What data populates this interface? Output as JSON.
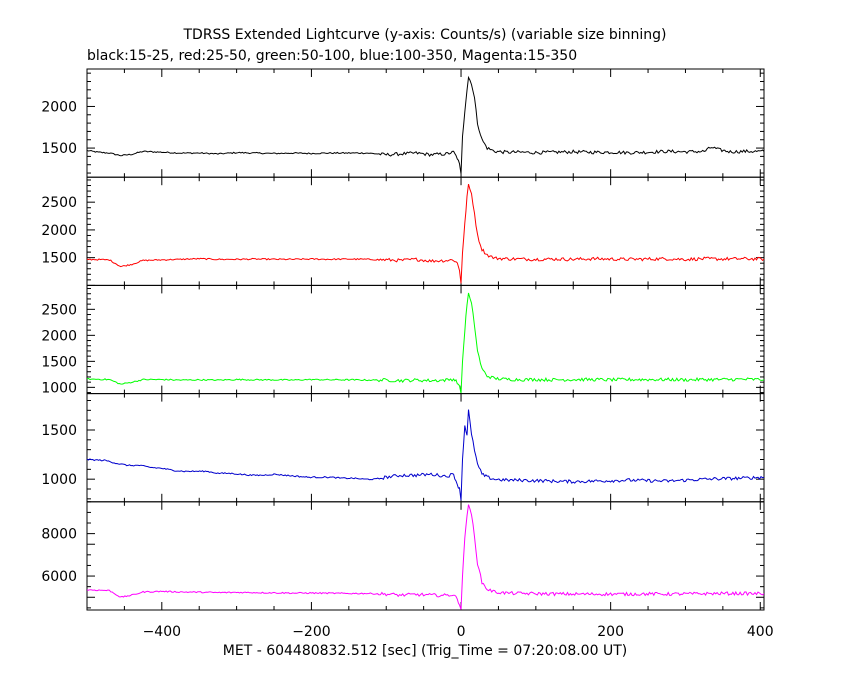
{
  "title": "TDRSS Extended Lightcurve (y-axis: Counts/s) (variable size binning)",
  "subtitle": "black:15-25, red:25-50, green:50-100, blue:100-350, Magenta:15-350",
  "xlabel": "MET - 604480832.512 [sec] (Trig_Time = 07:20:08.00 UT)",
  "chart_data": {
    "type": "line",
    "x_range": [
      -500,
      405
    ],
    "x_ticks": [
      -400,
      -200,
      0,
      200,
      400
    ],
    "grid": false,
    "panels": [
      {
        "band": "15-25",
        "color": "#000000",
        "ylim": [
          1150,
          2450
        ],
        "y_ticks": [
          1500,
          2000
        ],
        "points": [
          [
            -500,
            1470
          ],
          [
            -485,
            1450
          ],
          [
            -470,
            1440
          ],
          [
            -455,
            1410
          ],
          [
            -440,
            1425
          ],
          [
            -425,
            1460
          ],
          [
            -400,
            1450
          ],
          [
            -375,
            1440
          ],
          [
            -350,
            1440
          ],
          [
            -325,
            1430
          ],
          [
            -300,
            1445
          ],
          [
            -275,
            1440
          ],
          [
            -250,
            1435
          ],
          [
            -225,
            1440
          ],
          [
            -200,
            1435
          ],
          [
            -175,
            1440
          ],
          [
            -150,
            1440
          ],
          [
            -125,
            1440
          ],
          [
            -100,
            1420
          ],
          [
            -80,
            1430
          ],
          [
            -60,
            1440
          ],
          [
            -40,
            1420
          ],
          [
            -20,
            1430
          ],
          [
            -10,
            1450
          ],
          [
            -5,
            1380
          ],
          [
            -2,
            1300
          ],
          [
            0,
            1180
          ],
          [
            2,
            1650
          ],
          [
            5,
            1950
          ],
          [
            8,
            2200
          ],
          [
            10,
            2350
          ],
          [
            14,
            2280
          ],
          [
            18,
            2100
          ],
          [
            22,
            1800
          ],
          [
            28,
            1600
          ],
          [
            35,
            1500
          ],
          [
            45,
            1460
          ],
          [
            60,
            1450
          ],
          [
            80,
            1450
          ],
          [
            100,
            1445
          ],
          [
            125,
            1450
          ],
          [
            150,
            1455
          ],
          [
            175,
            1450
          ],
          [
            200,
            1450
          ],
          [
            225,
            1445
          ],
          [
            250,
            1450
          ],
          [
            275,
            1460
          ],
          [
            300,
            1455
          ],
          [
            325,
            1460
          ],
          [
            335,
            1510
          ],
          [
            345,
            1480
          ],
          [
            360,
            1455
          ],
          [
            380,
            1460
          ],
          [
            405,
            1460
          ]
        ]
      },
      {
        "band": "25-50",
        "color": "#ff0000",
        "ylim": [
          1000,
          2950
        ],
        "y_ticks": [
          1500,
          2000,
          2500
        ],
        "points": [
          [
            -500,
            1470
          ],
          [
            -470,
            1460
          ],
          [
            -455,
            1340
          ],
          [
            -440,
            1380
          ],
          [
            -425,
            1450
          ],
          [
            -400,
            1460
          ],
          [
            -375,
            1470
          ],
          [
            -350,
            1480
          ],
          [
            -325,
            1470
          ],
          [
            -300,
            1470
          ],
          [
            -275,
            1475
          ],
          [
            -250,
            1470
          ],
          [
            -225,
            1470
          ],
          [
            -200,
            1475
          ],
          [
            -175,
            1470
          ],
          [
            -150,
            1475
          ],
          [
            -125,
            1470
          ],
          [
            -100,
            1460
          ],
          [
            -80,
            1450
          ],
          [
            -60,
            1470
          ],
          [
            -40,
            1440
          ],
          [
            -20,
            1450
          ],
          [
            -10,
            1460
          ],
          [
            -5,
            1400
          ],
          [
            -2,
            1280
          ],
          [
            0,
            1050
          ],
          [
            2,
            1600
          ],
          [
            5,
            2100
          ],
          [
            8,
            2600
          ],
          [
            10,
            2800
          ],
          [
            14,
            2650
          ],
          [
            18,
            2300
          ],
          [
            22,
            1900
          ],
          [
            28,
            1650
          ],
          [
            35,
            1550
          ],
          [
            45,
            1490
          ],
          [
            60,
            1480
          ],
          [
            80,
            1475
          ],
          [
            100,
            1470
          ],
          [
            125,
            1475
          ],
          [
            150,
            1470
          ],
          [
            175,
            1480
          ],
          [
            200,
            1475
          ],
          [
            225,
            1470
          ],
          [
            250,
            1475
          ],
          [
            275,
            1480
          ],
          [
            300,
            1470
          ],
          [
            325,
            1480
          ],
          [
            350,
            1475
          ],
          [
            375,
            1480
          ],
          [
            405,
            1475
          ]
        ]
      },
      {
        "band": "50-100",
        "color": "#00ff00",
        "ylim": [
          880,
          2960
        ],
        "y_ticks": [
          1000,
          1500,
          2000,
          2500
        ],
        "points": [
          [
            -500,
            1160
          ],
          [
            -470,
            1150
          ],
          [
            -455,
            1060
          ],
          [
            -440,
            1100
          ],
          [
            -425,
            1150
          ],
          [
            -400,
            1150
          ],
          [
            -375,
            1140
          ],
          [
            -350,
            1145
          ],
          [
            -325,
            1140
          ],
          [
            -300,
            1150
          ],
          [
            -275,
            1145
          ],
          [
            -250,
            1145
          ],
          [
            -225,
            1140
          ],
          [
            -200,
            1150
          ],
          [
            -175,
            1145
          ],
          [
            -150,
            1145
          ],
          [
            -125,
            1140
          ],
          [
            -100,
            1140
          ],
          [
            -80,
            1130
          ],
          [
            -60,
            1140
          ],
          [
            -40,
            1130
          ],
          [
            -20,
            1140
          ],
          [
            -10,
            1160
          ],
          [
            -5,
            1100
          ],
          [
            -2,
            1000
          ],
          [
            0,
            900
          ],
          [
            2,
            1500
          ],
          [
            5,
            2100
          ],
          [
            8,
            2600
          ],
          [
            10,
            2800
          ],
          [
            14,
            2600
          ],
          [
            18,
            2200
          ],
          [
            22,
            1700
          ],
          [
            28,
            1350
          ],
          [
            35,
            1220
          ],
          [
            45,
            1170
          ],
          [
            60,
            1155
          ],
          [
            80,
            1150
          ],
          [
            100,
            1150
          ],
          [
            125,
            1145
          ],
          [
            150,
            1150
          ],
          [
            175,
            1150
          ],
          [
            200,
            1145
          ],
          [
            225,
            1150
          ],
          [
            250,
            1150
          ],
          [
            275,
            1150
          ],
          [
            300,
            1145
          ],
          [
            325,
            1150
          ],
          [
            350,
            1150
          ],
          [
            375,
            1155
          ],
          [
            405,
            1150
          ]
        ]
      },
      {
        "band": "100-350",
        "color": "#0000cc",
        "ylim": [
          770,
          1870
        ],
        "y_ticks": [
          1000,
          1500
        ],
        "points": [
          [
            -500,
            1200
          ],
          [
            -475,
            1190
          ],
          [
            -460,
            1160
          ],
          [
            -445,
            1140
          ],
          [
            -430,
            1140
          ],
          [
            -415,
            1120
          ],
          [
            -400,
            1110
          ],
          [
            -385,
            1090
          ],
          [
            -370,
            1080
          ],
          [
            -355,
            1080
          ],
          [
            -340,
            1080
          ],
          [
            -325,
            1060
          ],
          [
            -310,
            1060
          ],
          [
            -295,
            1050
          ],
          [
            -280,
            1040
          ],
          [
            -265,
            1040
          ],
          [
            -250,
            1050
          ],
          [
            -235,
            1040
          ],
          [
            -220,
            1030
          ],
          [
            -205,
            1020
          ],
          [
            -190,
            1020
          ],
          [
            -175,
            1020
          ],
          [
            -160,
            1010
          ],
          [
            -145,
            1010
          ],
          [
            -130,
            1000
          ],
          [
            -115,
            1000
          ],
          [
            -100,
            1020
          ],
          [
            -80,
            1040
          ],
          [
            -60,
            1040
          ],
          [
            -40,
            1050
          ],
          [
            -20,
            1030
          ],
          [
            -10,
            1050
          ],
          [
            -5,
            950
          ],
          [
            -2,
            900
          ],
          [
            0,
            800
          ],
          [
            2,
            1200
          ],
          [
            5,
            1550
          ],
          [
            8,
            1450
          ],
          [
            10,
            1700
          ],
          [
            14,
            1450
          ],
          [
            18,
            1300
          ],
          [
            22,
            1150
          ],
          [
            28,
            1050
          ],
          [
            35,
            1020
          ],
          [
            45,
            1000
          ],
          [
            60,
            990
          ],
          [
            80,
            990
          ],
          [
            100,
            985
          ],
          [
            125,
            980
          ],
          [
            150,
            975
          ],
          [
            175,
            980
          ],
          [
            200,
            985
          ],
          [
            225,
            990
          ],
          [
            250,
            985
          ],
          [
            275,
            980
          ],
          [
            300,
            990
          ],
          [
            325,
            1000
          ],
          [
            350,
            1005
          ],
          [
            375,
            1010
          ],
          [
            405,
            1020
          ]
        ]
      },
      {
        "band": "15-350",
        "color": "#ff00ff",
        "ylim": [
          4400,
          9500
        ],
        "y_ticks": [
          6000,
          8000
        ],
        "points": [
          [
            -500,
            5350
          ],
          [
            -470,
            5320
          ],
          [
            -455,
            5000
          ],
          [
            -440,
            5100
          ],
          [
            -425,
            5250
          ],
          [
            -400,
            5280
          ],
          [
            -375,
            5250
          ],
          [
            -350,
            5240
          ],
          [
            -325,
            5220
          ],
          [
            -300,
            5230
          ],
          [
            -275,
            5220
          ],
          [
            -250,
            5210
          ],
          [
            -225,
            5200
          ],
          [
            -200,
            5200
          ],
          [
            -175,
            5190
          ],
          [
            -150,
            5180
          ],
          [
            -125,
            5180
          ],
          [
            -100,
            5150
          ],
          [
            -80,
            5100
          ],
          [
            -60,
            5130
          ],
          [
            -40,
            5100
          ],
          [
            -20,
            5090
          ],
          [
            -10,
            5130
          ],
          [
            -5,
            4900
          ],
          [
            -2,
            4700
          ],
          [
            0,
            4450
          ],
          [
            2,
            6000
          ],
          [
            5,
            7800
          ],
          [
            8,
            8900
          ],
          [
            10,
            9300
          ],
          [
            14,
            8900
          ],
          [
            18,
            7900
          ],
          [
            22,
            6600
          ],
          [
            28,
            5700
          ],
          [
            35,
            5380
          ],
          [
            45,
            5250
          ],
          [
            60,
            5200
          ],
          [
            80,
            5180
          ],
          [
            100,
            5170
          ],
          [
            125,
            5160
          ],
          [
            150,
            5150
          ],
          [
            175,
            5150
          ],
          [
            200,
            5150
          ],
          [
            225,
            5150
          ],
          [
            250,
            5160
          ],
          [
            275,
            5150
          ],
          [
            300,
            5160
          ],
          [
            325,
            5170
          ],
          [
            350,
            5180
          ],
          [
            375,
            5180
          ],
          [
            405,
            5170
          ]
        ]
      }
    ]
  }
}
